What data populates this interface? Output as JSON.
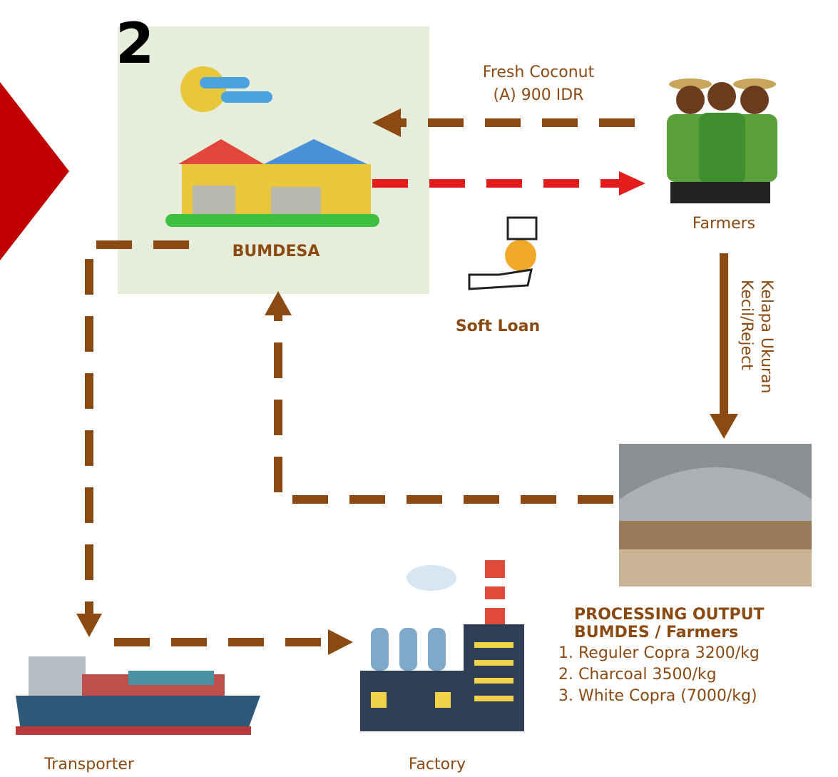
{
  "step_number": "2",
  "bumdesa": {
    "label": "BUMDESA"
  },
  "farmers": {
    "label": "Farmers"
  },
  "fresh_coconut": {
    "lines": [
      "Fresh Coconut",
      "(A) 900 IDR"
    ]
  },
  "soft_loan": {
    "label": "Soft Loan"
  },
  "reject_flow": {
    "lines": [
      "Kelapa Ukuran",
      "Kecil/Reject"
    ]
  },
  "processing": {
    "heading": [
      "PROCESSING OUTPUT",
      "BUMDES / Farmers"
    ],
    "items": [
      "1. Reguler Copra 3200/kg",
      "2. Charcoal 3500/kg",
      "3. White Copra (7000/kg)"
    ]
  },
  "transporter": {
    "label": "Transporter"
  },
  "factory": {
    "label": "Factory"
  }
}
